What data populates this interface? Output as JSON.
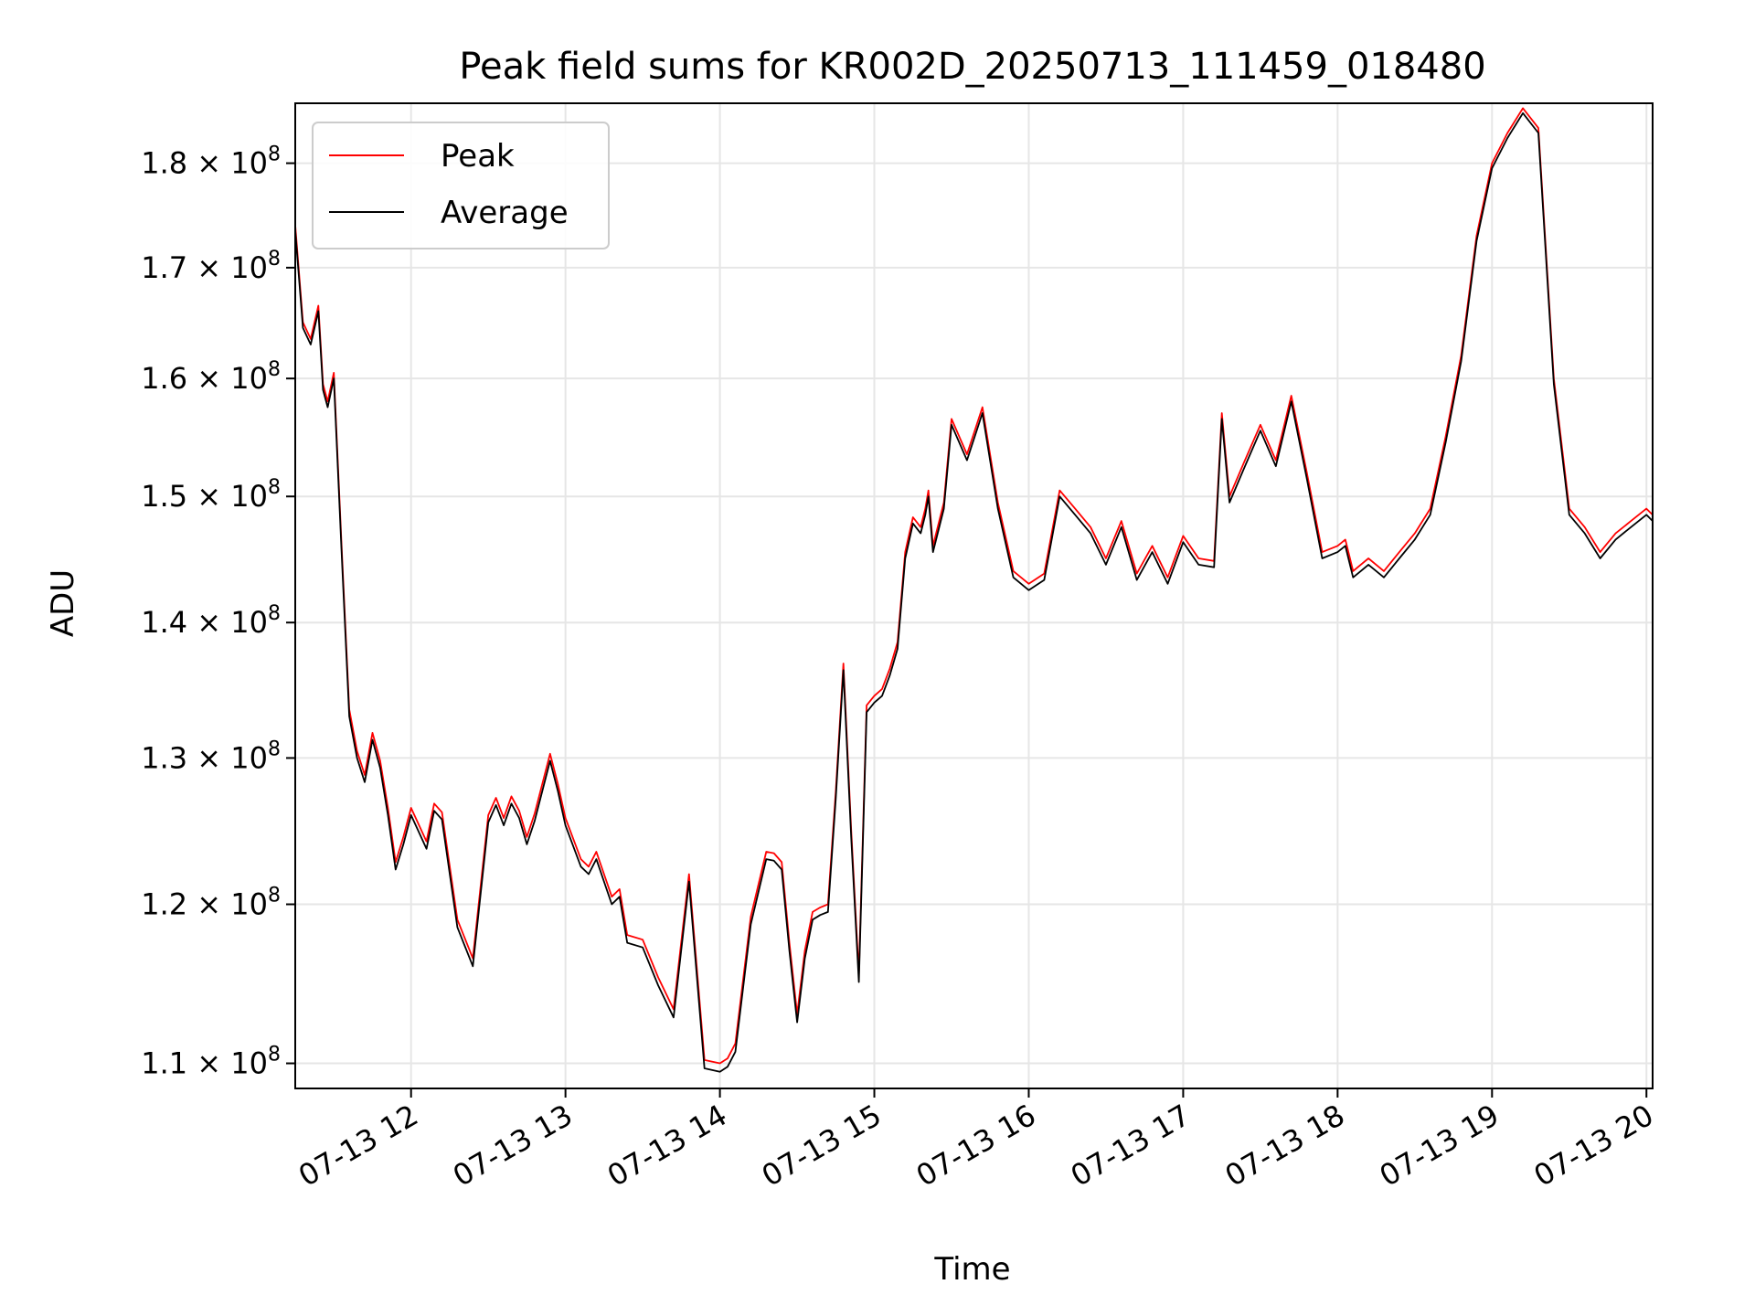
{
  "chart_data": {
    "type": "line",
    "title": "Peak field sums for KR002D_20250713_111459_018480",
    "xlabel": "Time",
    "ylabel": "ADU",
    "x_tick_labels": [
      "07-13 12",
      "07-13 13",
      "07-13 14",
      "07-13 15",
      "07-13 16",
      "07-13 17",
      "07-13 18",
      "07-13 19",
      "07-13 20"
    ],
    "x_tick_hours": [
      12,
      13,
      14,
      15,
      16,
      17,
      18,
      19,
      20
    ],
    "xlim_hours": [
      11.25,
      20.04
    ],
    "y_scale": "log",
    "ylim": [
      108500000,
      186000000
    ],
    "y_ticks": [
      {
        "value": 110000000,
        "mant": "1.1",
        "exp": "8"
      },
      {
        "value": 120000000,
        "mant": "1.2",
        "exp": "8"
      },
      {
        "value": 130000000,
        "mant": "1.3",
        "exp": "8"
      },
      {
        "value": 140000000,
        "mant": "1.4",
        "exp": "8"
      },
      {
        "value": 150000000,
        "mant": "1.5",
        "exp": "8"
      },
      {
        "value": 160000000,
        "mant": "1.6",
        "exp": "8"
      },
      {
        "value": 170000000,
        "mant": "1.7",
        "exp": "8"
      },
      {
        "value": 180000000,
        "mant": "1.8",
        "exp": "8"
      }
    ],
    "tick_base": "10",
    "tick_times": "×",
    "grid": true,
    "legend_position": "top-left",
    "x_unit": "hour of 2025-07-13",
    "y_unit": "ADU",
    "series": [
      {
        "name": "Peak",
        "color": "#ff0000",
        "x": [
          11.25,
          11.3,
          11.35,
          11.4,
          11.43,
          11.46,
          11.5,
          11.55,
          11.6,
          11.65,
          11.7,
          11.75,
          11.8,
          11.85,
          11.9,
          11.95,
          12.0,
          12.1,
          12.15,
          12.2,
          12.3,
          12.4,
          12.5,
          12.55,
          12.6,
          12.65,
          12.7,
          12.75,
          12.8,
          12.9,
          12.95,
          13.0,
          13.1,
          13.15,
          13.2,
          13.3,
          13.35,
          13.4,
          13.5,
          13.6,
          13.7,
          13.8,
          13.9,
          14.0,
          14.05,
          14.1,
          14.2,
          14.3,
          14.35,
          14.4,
          14.45,
          14.5,
          14.55,
          14.6,
          14.65,
          14.7,
          14.75,
          14.8,
          14.85,
          14.9,
          14.95,
          15.0,
          15.05,
          15.1,
          15.15,
          15.2,
          15.25,
          15.3,
          15.33,
          15.35,
          15.38,
          15.45,
          15.5,
          15.6,
          15.7,
          15.8,
          15.9,
          16.0,
          16.1,
          16.2,
          16.3,
          16.4,
          16.5,
          16.6,
          16.7,
          16.8,
          16.9,
          17.0,
          17.1,
          17.2,
          17.25,
          17.3,
          17.4,
          17.5,
          17.6,
          17.7,
          17.8,
          17.9,
          18.0,
          18.05,
          18.1,
          18.15,
          18.2,
          18.3,
          18.4,
          18.5,
          18.6,
          18.7,
          18.8,
          18.9,
          19.0,
          19.1,
          19.2,
          19.3,
          19.4,
          19.5,
          19.6,
          19.7,
          19.8,
          19.9,
          20.0,
          20.04
        ],
        "y": [
          174000000,
          165000000,
          163500000,
          166500000,
          159500000,
          158000000,
          160500000,
          146000000,
          133500000,
          130500000,
          128800000,
          131800000,
          129800000,
          126500000,
          122800000,
          124500000,
          126500000,
          124200000,
          126800000,
          126200000,
          119000000,
          116500000,
          126000000,
          127200000,
          125800000,
          127300000,
          126300000,
          124500000,
          126100000,
          130300000,
          128200000,
          125800000,
          123000000,
          122500000,
          123500000,
          120500000,
          121000000,
          118000000,
          117700000,
          115300000,
          113300000,
          122000000,
          110200000,
          110000000,
          110300000,
          111200000,
          119200000,
          123500000,
          123400000,
          122800000,
          117500000,
          113000000,
          117000000,
          119500000,
          119800000,
          120000000,
          127600000,
          136900000,
          125000000,
          115500000,
          133800000,
          134500000,
          135000000,
          136500000,
          138500000,
          145500000,
          148300000,
          147500000,
          149000000,
          150500000,
          146000000,
          149500000,
          156500000,
          153500000,
          157500000,
          149500000,
          144000000,
          143000000,
          143800000,
          150500000,
          149000000,
          147500000,
          145000000,
          148000000,
          143800000,
          146000000,
          143500000,
          146800000,
          145000000,
          144800000,
          157000000,
          150000000,
          153000000,
          156000000,
          153000000,
          158500000,
          152000000,
          145500000,
          146000000,
          146500000,
          144000000,
          144500000,
          145000000,
          144000000,
          145500000,
          147000000,
          149000000,
          155000000,
          162000000,
          173000000,
          180000000,
          183000000,
          185500000,
          183500000,
          160000000,
          149000000,
          147500000,
          145500000,
          147000000,
          148000000,
          149000000,
          148500000
        ]
      },
      {
        "name": "Average",
        "color": "#000000",
        "x": [
          11.25,
          11.3,
          11.35,
          11.4,
          11.43,
          11.46,
          11.5,
          11.55,
          11.6,
          11.65,
          11.7,
          11.75,
          11.8,
          11.85,
          11.9,
          11.95,
          12.0,
          12.1,
          12.15,
          12.2,
          12.3,
          12.4,
          12.5,
          12.55,
          12.6,
          12.65,
          12.7,
          12.75,
          12.8,
          12.9,
          12.95,
          13.0,
          13.1,
          13.15,
          13.2,
          13.3,
          13.35,
          13.4,
          13.5,
          13.6,
          13.7,
          13.8,
          13.9,
          14.0,
          14.05,
          14.1,
          14.2,
          14.3,
          14.35,
          14.4,
          14.45,
          14.5,
          14.55,
          14.6,
          14.65,
          14.7,
          14.75,
          14.8,
          14.85,
          14.9,
          14.95,
          15.0,
          15.05,
          15.1,
          15.15,
          15.2,
          15.25,
          15.3,
          15.33,
          15.35,
          15.38,
          15.45,
          15.5,
          15.6,
          15.7,
          15.8,
          15.9,
          16.0,
          16.1,
          16.2,
          16.3,
          16.4,
          16.5,
          16.6,
          16.7,
          16.8,
          16.9,
          17.0,
          17.1,
          17.2,
          17.25,
          17.3,
          17.4,
          17.5,
          17.6,
          17.7,
          17.8,
          17.9,
          18.0,
          18.05,
          18.1,
          18.15,
          18.2,
          18.3,
          18.4,
          18.5,
          18.6,
          18.7,
          18.8,
          18.9,
          19.0,
          19.1,
          19.2,
          19.3,
          19.4,
          19.5,
          19.6,
          19.7,
          19.8,
          19.9,
          20.0,
          20.04
        ],
        "y": [
          173500000,
          164500000,
          163000000,
          166000000,
          159000000,
          157500000,
          160000000,
          145500000,
          133000000,
          130000000,
          128300000,
          131300000,
          129300000,
          126000000,
          122300000,
          124000000,
          126000000,
          123700000,
          126300000,
          125700000,
          118500000,
          116000000,
          125500000,
          126700000,
          125300000,
          126800000,
          125800000,
          124000000,
          125600000,
          129800000,
          127700000,
          125300000,
          122500000,
          122000000,
          123000000,
          120000000,
          120500000,
          117500000,
          117200000,
          114800000,
          112800000,
          121500000,
          109700000,
          109500000,
          109800000,
          110700000,
          118700000,
          123000000,
          122900000,
          122300000,
          117000000,
          112500000,
          116500000,
          119000000,
          119300000,
          119500000,
          127100000,
          136400000,
          124500000,
          115000000,
          133300000,
          134000000,
          134500000,
          136000000,
          138000000,
          145000000,
          147800000,
          147000000,
          148500000,
          150000000,
          145500000,
          149000000,
          156000000,
          153000000,
          157000000,
          149000000,
          143500000,
          142500000,
          143300000,
          150000000,
          148500000,
          147000000,
          144500000,
          147500000,
          143300000,
          145500000,
          143000000,
          146300000,
          144500000,
          144300000,
          156500000,
          149500000,
          152500000,
          155500000,
          152500000,
          158000000,
          151500000,
          145000000,
          145500000,
          146000000,
          143500000,
          144000000,
          144500000,
          143500000,
          145000000,
          146500000,
          148500000,
          154500000,
          161500000,
          172500000,
          179500000,
          182500000,
          185000000,
          183000000,
          159500000,
          148500000,
          147000000,
          145000000,
          146500000,
          147500000,
          148500000,
          148000000
        ]
      }
    ]
  }
}
